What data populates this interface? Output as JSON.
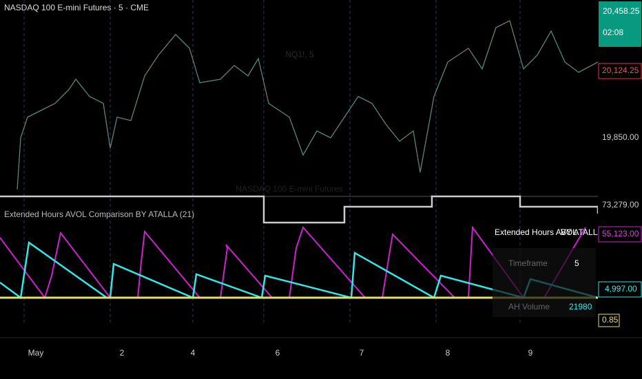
{
  "header": {
    "symbol_title": "NASDAQ 100 E-mini Futures · 5 · CME",
    "watermark": "NQ1!, 5",
    "watermark_sub": "NASDAQ 100 E-mini Futures"
  },
  "price_axis": {
    "last_price": "20,458.25",
    "countdown": "02:08",
    "marker_price": "20,124.25",
    "level": "19,850.00"
  },
  "indicator": {
    "title": "Extended Hours AVOL Comparison BY ATALLA (21)",
    "axis_labels": {
      "white": "73,279.00",
      "magenta": "55,123.00",
      "cyan": "4,997.00",
      "yellow": "0.85"
    },
    "table": {
      "heading": [
        "Extended Hours AVOL",
        "BY ATALLA"
      ],
      "rows": [
        [
          "Timeframe",
          "5"
        ],
        [
          "AH Volume",
          "21980"
        ]
      ]
    }
  },
  "time_axis": {
    "labels": [
      "May",
      "2",
      "4",
      "6",
      "7",
      "8",
      "9"
    ]
  }
}
